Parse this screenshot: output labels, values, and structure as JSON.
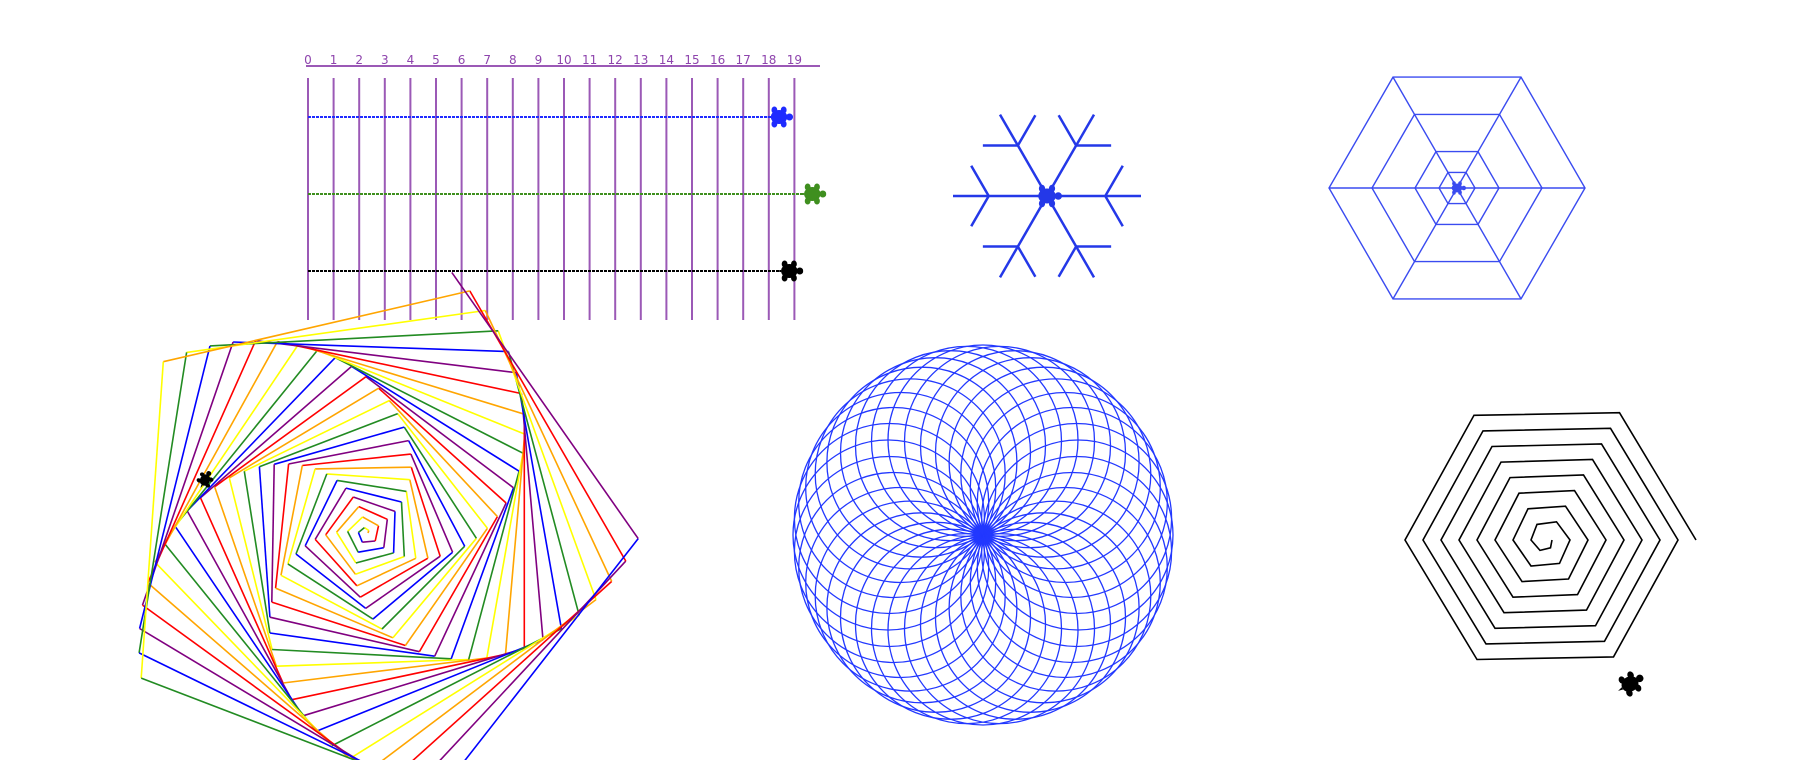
{
  "race": {
    "tick_labels": [
      "0",
      "1",
      "2",
      "3",
      "4",
      "5",
      "6",
      "7",
      "8",
      "9",
      "10",
      "11",
      "12",
      "13",
      "14",
      "15",
      "16",
      "17",
      "18",
      "19"
    ],
    "line_color": "#9b59b6",
    "turtles": [
      {
        "name": "blue",
        "color": "#1f2bff",
        "position": 18.4
      },
      {
        "name": "green",
        "color": "#3f8f1f",
        "position": 19.7
      },
      {
        "name": "black",
        "color": "#000000",
        "position": 18.8
      }
    ]
  },
  "snowflake": {
    "color": "#2438e8",
    "arms": 6
  },
  "web": {
    "color": "#3a4bf0",
    "sides": 6,
    "rings": 4
  },
  "rainbow_spiral": {
    "colors": [
      "#ff0000",
      "#ffa500",
      "#ffff00",
      "#228b22",
      "#0000ff",
      "#800080"
    ],
    "sides": 5,
    "turtle_color": "#000000"
  },
  "spirograph": {
    "color": "#2238ff",
    "circles": 36
  },
  "hex_spiral": {
    "color": "#000000",
    "sides": 6,
    "turns": 8
  }
}
